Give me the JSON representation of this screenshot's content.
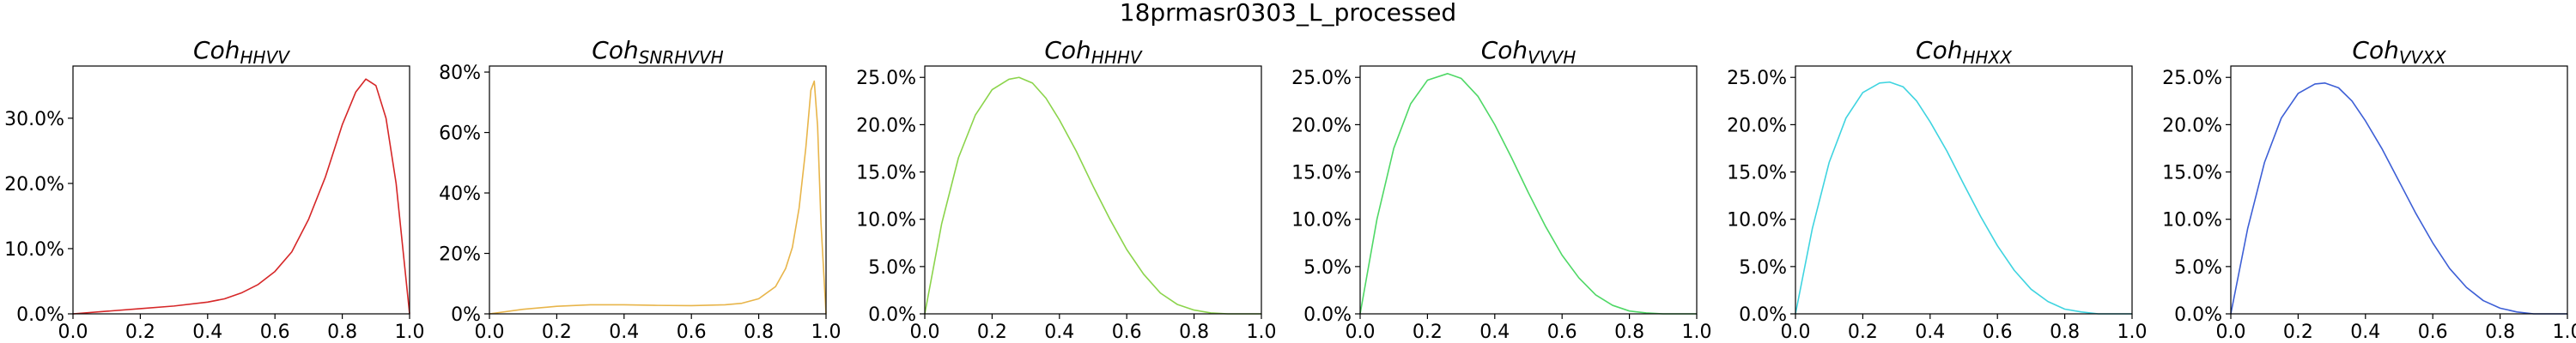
{
  "figure_title": "18prmasr0303_L_processed",
  "chart_data": [
    {
      "type": "line",
      "title_main": "Coh",
      "title_sub": "HHVV",
      "color": "#d62728",
      "xlim": [
        0,
        1
      ],
      "ylim": [
        0,
        0.38
      ],
      "xticks": [
        0.0,
        0.2,
        0.4,
        0.6,
        0.8,
        1.0
      ],
      "xtick_labels": [
        "0.0",
        "0.2",
        "0.4",
        "0.6",
        "0.8",
        "1.0"
      ],
      "yticks": [
        0.0,
        0.1,
        0.2,
        0.3
      ],
      "ytick_labels": [
        "0.0%",
        "10.0%",
        "20.0%",
        "30.0%"
      ],
      "x": [
        0.0,
        0.1,
        0.2,
        0.3,
        0.4,
        0.45,
        0.5,
        0.55,
        0.6,
        0.65,
        0.7,
        0.75,
        0.8,
        0.84,
        0.87,
        0.9,
        0.93,
        0.96,
        0.98,
        1.0
      ],
      "y": [
        0.0,
        0.004,
        0.008,
        0.012,
        0.018,
        0.023,
        0.032,
        0.045,
        0.065,
        0.095,
        0.145,
        0.21,
        0.29,
        0.34,
        0.36,
        0.35,
        0.3,
        0.2,
        0.1,
        0.0
      ]
    },
    {
      "type": "line",
      "title_main": "Coh",
      "title_sub": "SNRHVVH",
      "color": "#e8b54a",
      "xlim": [
        0,
        1
      ],
      "ylim": [
        0,
        0.82
      ],
      "xticks": [
        0.0,
        0.2,
        0.4,
        0.6,
        0.8,
        1.0
      ],
      "xtick_labels": [
        "0.0",
        "0.2",
        "0.4",
        "0.6",
        "0.8",
        "1.0"
      ],
      "yticks": [
        0.0,
        0.2,
        0.4,
        0.6,
        0.8
      ],
      "ytick_labels": [
        "0%",
        "20%",
        "40%",
        "60%",
        "80%"
      ],
      "x": [
        0.0,
        0.1,
        0.2,
        0.3,
        0.4,
        0.5,
        0.6,
        0.7,
        0.75,
        0.8,
        0.85,
        0.88,
        0.9,
        0.92,
        0.94,
        0.955,
        0.965,
        0.975,
        0.985,
        1.0
      ],
      "y": [
        0.0,
        0.015,
        0.025,
        0.03,
        0.03,
        0.028,
        0.027,
        0.03,
        0.035,
        0.05,
        0.09,
        0.15,
        0.22,
        0.35,
        0.55,
        0.74,
        0.77,
        0.62,
        0.3,
        0.0
      ]
    },
    {
      "type": "line",
      "title_main": "Coh",
      "title_sub": "HHHV",
      "color": "#8bd44b",
      "xlim": [
        0,
        1
      ],
      "ylim": [
        0,
        0.262
      ],
      "xticks": [
        0.0,
        0.2,
        0.4,
        0.6,
        0.8,
        1.0
      ],
      "xtick_labels": [
        "0.0",
        "0.2",
        "0.4",
        "0.6",
        "0.8",
        "1.0"
      ],
      "yticks": [
        0.0,
        0.05,
        0.1,
        0.15,
        0.2,
        0.25
      ],
      "ytick_labels": [
        "0.0%",
        "5.0%",
        "10.0%",
        "15.0%",
        "20.0%",
        "25.0%"
      ],
      "x": [
        0.0,
        0.05,
        0.1,
        0.15,
        0.2,
        0.25,
        0.28,
        0.32,
        0.36,
        0.4,
        0.45,
        0.5,
        0.55,
        0.6,
        0.65,
        0.7,
        0.75,
        0.8,
        0.85,
        0.9,
        1.0
      ],
      "y": [
        0.0,
        0.095,
        0.165,
        0.21,
        0.237,
        0.248,
        0.25,
        0.244,
        0.228,
        0.205,
        0.172,
        0.135,
        0.1,
        0.068,
        0.042,
        0.022,
        0.01,
        0.004,
        0.001,
        0.0,
        0.0
      ]
    },
    {
      "type": "line",
      "title_main": "Coh",
      "title_sub": "VVVH",
      "color": "#4fd866",
      "xlim": [
        0,
        1
      ],
      "ylim": [
        0,
        0.262
      ],
      "xticks": [
        0.0,
        0.2,
        0.4,
        0.6,
        0.8,
        1.0
      ],
      "xtick_labels": [
        "0.0",
        "0.2",
        "0.4",
        "0.6",
        "0.8",
        "1.0"
      ],
      "yticks": [
        0.0,
        0.05,
        0.1,
        0.15,
        0.2,
        0.25
      ],
      "ytick_labels": [
        "0.0%",
        "5.0%",
        "10.0%",
        "15.0%",
        "20.0%",
        "25.0%"
      ],
      "x": [
        0.0,
        0.05,
        0.1,
        0.15,
        0.2,
        0.26,
        0.3,
        0.35,
        0.4,
        0.45,
        0.5,
        0.55,
        0.6,
        0.65,
        0.7,
        0.75,
        0.8,
        0.85,
        0.9,
        1.0
      ],
      "y": [
        0.0,
        0.1,
        0.175,
        0.222,
        0.247,
        0.254,
        0.249,
        0.23,
        0.2,
        0.165,
        0.128,
        0.093,
        0.062,
        0.038,
        0.02,
        0.009,
        0.003,
        0.001,
        0.0,
        0.0
      ]
    },
    {
      "type": "line",
      "title_main": "Coh",
      "title_sub": "HHXX",
      "color": "#3fd4e0",
      "xlim": [
        0,
        1
      ],
      "ylim": [
        0,
        0.262
      ],
      "xticks": [
        0.0,
        0.2,
        0.4,
        0.6,
        0.8,
        1.0
      ],
      "xtick_labels": [
        "0.0",
        "0.2",
        "0.4",
        "0.6",
        "0.8",
        "1.0"
      ],
      "yticks": [
        0.0,
        0.05,
        0.1,
        0.15,
        0.2,
        0.25
      ],
      "ytick_labels": [
        "0.0%",
        "5.0%",
        "10.0%",
        "15.0%",
        "20.0%",
        "25.0%"
      ],
      "x": [
        0.0,
        0.05,
        0.1,
        0.15,
        0.2,
        0.25,
        0.28,
        0.32,
        0.36,
        0.4,
        0.45,
        0.5,
        0.55,
        0.6,
        0.65,
        0.7,
        0.75,
        0.8,
        0.85,
        0.9,
        1.0
      ],
      "y": [
        0.0,
        0.09,
        0.16,
        0.207,
        0.234,
        0.244,
        0.245,
        0.24,
        0.225,
        0.203,
        0.172,
        0.137,
        0.103,
        0.072,
        0.046,
        0.026,
        0.013,
        0.005,
        0.002,
        0.0,
        0.0
      ]
    },
    {
      "type": "line",
      "title_main": "Coh",
      "title_sub": "VVXX",
      "color": "#3d5fd6",
      "xlim": [
        0,
        1
      ],
      "ylim": [
        0,
        0.262
      ],
      "xticks": [
        0.0,
        0.2,
        0.4,
        0.6,
        0.8,
        1.0
      ],
      "xtick_labels": [
        "0.0",
        "0.2",
        "0.4",
        "0.6",
        "0.8",
        "1.0"
      ],
      "yticks": [
        0.0,
        0.05,
        0.1,
        0.15,
        0.2,
        0.25
      ],
      "ytick_labels": [
        "0.0%",
        "5.0%",
        "10.0%",
        "15.0%",
        "20.0%",
        "25.0%"
      ],
      "x": [
        0.0,
        0.05,
        0.1,
        0.15,
        0.2,
        0.25,
        0.28,
        0.32,
        0.36,
        0.4,
        0.45,
        0.5,
        0.55,
        0.6,
        0.65,
        0.7,
        0.75,
        0.8,
        0.85,
        0.9,
        1.0
      ],
      "y": [
        0.0,
        0.09,
        0.16,
        0.207,
        0.233,
        0.243,
        0.244,
        0.239,
        0.225,
        0.204,
        0.174,
        0.14,
        0.106,
        0.075,
        0.048,
        0.028,
        0.014,
        0.006,
        0.002,
        0.0,
        0.0
      ]
    }
  ]
}
